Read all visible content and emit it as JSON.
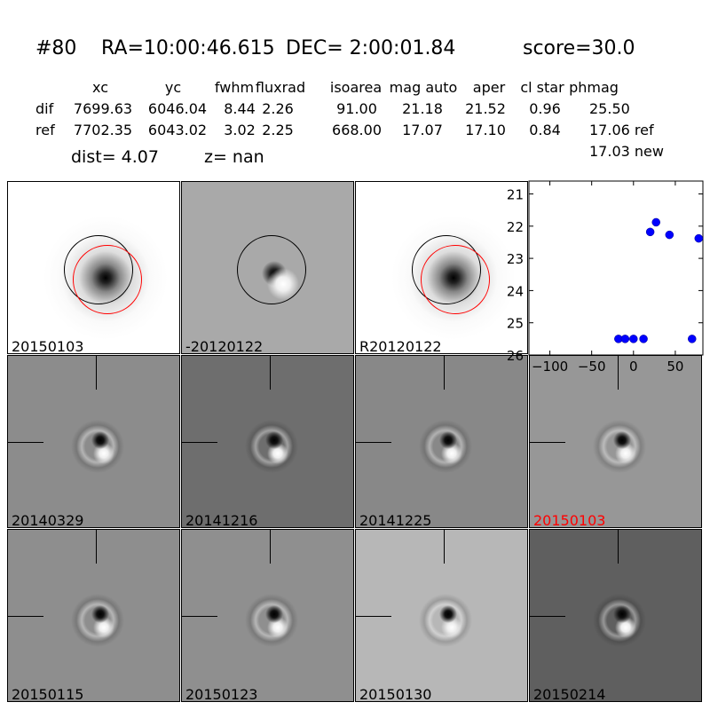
{
  "header": {
    "id": "#80",
    "ra": "RA=10:00:46.615",
    "dec": "DEC= 2:00:01.84",
    "score": "score=30.0"
  },
  "table": {
    "columns": [
      "xc",
      "yc",
      "fwhm",
      "fluxrad",
      "isoarea",
      "mag auto",
      "aper",
      "cl star",
      "phmag"
    ],
    "rows": [
      {
        "label": "dif",
        "values": [
          "7699.63",
          "6046.04",
          "8.44",
          "2.26",
          "91.00",
          "21.18",
          "21.52",
          "0.96",
          "25.50"
        ]
      },
      {
        "label": "ref",
        "values": [
          "7702.35",
          "6043.02",
          "3.02",
          "2.25",
          "668.00",
          "17.07",
          "17.10",
          "0.84",
          "17.06 ref"
        ]
      }
    ],
    "extra_phmag": "17.03 new",
    "dist": "dist=  4.07",
    "z": "z=   nan"
  },
  "stamps": [
    {
      "label": "20150103",
      "type": "new",
      "red": false
    },
    {
      "label": "-20120122",
      "type": "diff",
      "red": false
    },
    {
      "label": "R20120122",
      "type": "ref",
      "red": false
    },
    {
      "label": "20140329",
      "type": "epoch",
      "red": false
    },
    {
      "label": "20141216",
      "type": "epoch",
      "red": false
    },
    {
      "label": "20141225",
      "type": "epoch",
      "red": false
    },
    {
      "label": "20150103",
      "type": "epoch",
      "red": true
    },
    {
      "label": "20150115",
      "type": "epoch",
      "red": false
    },
    {
      "label": "20150123",
      "type": "epoch",
      "red": false
    },
    {
      "label": "20150130",
      "type": "epoch",
      "red": false
    },
    {
      "label": "20150214",
      "type": "epoch",
      "red": false
    }
  ],
  "colors": {
    "point": "#0000ff",
    "highlight": "#ff0000"
  },
  "chart_data": {
    "type": "scatter",
    "x": [
      -18,
      -10,
      0,
      12,
      20,
      27,
      43,
      70,
      78
    ],
    "y": [
      25.5,
      25.5,
      25.5,
      25.5,
      22.18,
      21.88,
      22.27,
      25.5,
      22.38
    ],
    "xlim": [
      -125,
      83
    ],
    "ylim": [
      26,
      20.6
    ],
    "y_inverted": true,
    "xticks": [
      -100,
      -50,
      0,
      50
    ],
    "yticks": [
      21,
      22,
      23,
      24,
      25,
      26
    ],
    "grid": false
  }
}
